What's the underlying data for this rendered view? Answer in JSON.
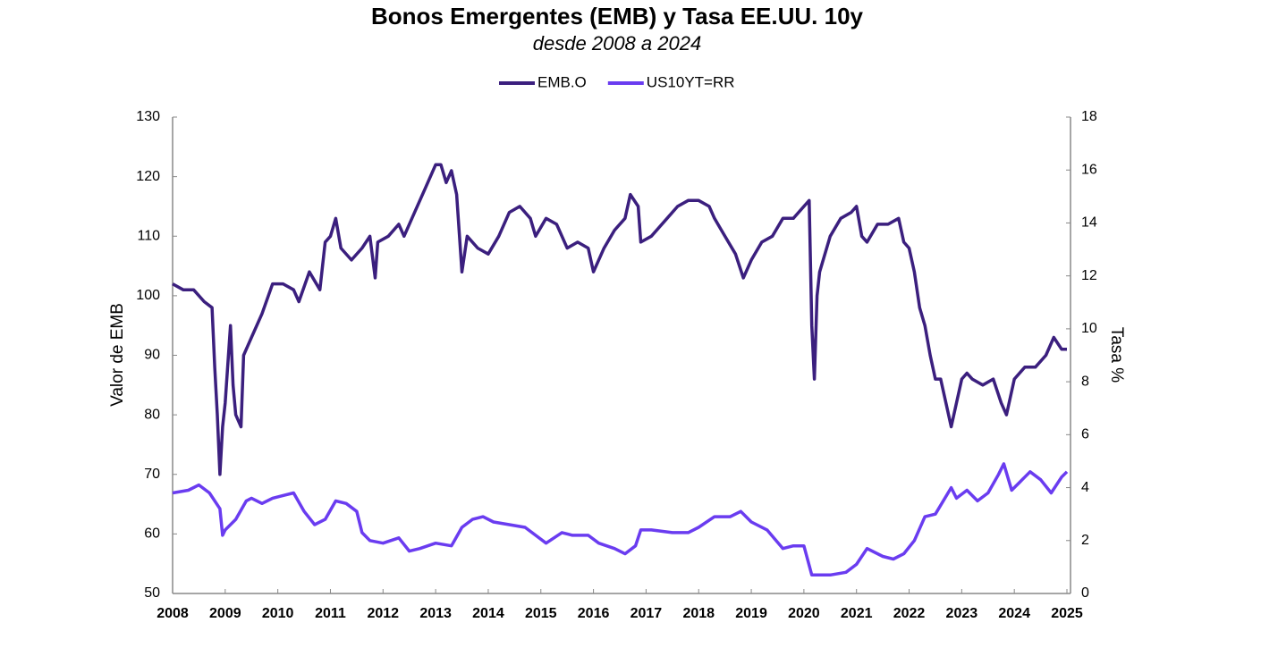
{
  "chart_data": {
    "type": "line",
    "title": "Bonos Emergentes (EMB) y Tasa EE.UU. 10y",
    "subtitle": "desde 2008 a 2024",
    "ylabel": "Valor de EMB",
    "y2label": "Tasa %",
    "legend": "top",
    "xlim": [
      2008,
      2025
    ],
    "xticks": [
      2008,
      2009,
      2010,
      2011,
      2012,
      2013,
      2014,
      2015,
      2016,
      2017,
      2018,
      2019,
      2020,
      2021,
      2022,
      2023,
      2024,
      2025
    ],
    "ylim": [
      50,
      130
    ],
    "yticks": [
      50,
      60,
      70,
      80,
      90,
      100,
      110,
      120,
      130
    ],
    "y2lim": [
      0,
      18
    ],
    "y2ticks": [
      0,
      2,
      4,
      6,
      8,
      10,
      12,
      14,
      16,
      18
    ],
    "series": [
      {
        "name": "EMB.O",
        "color": "#3b1f7e",
        "axis": "y",
        "x": [
          2008.0,
          2008.2,
          2008.4,
          2008.6,
          2008.75,
          2008.8,
          2008.85,
          2008.9,
          2008.95,
          2009.0,
          2009.1,
          2009.15,
          2009.2,
          2009.3,
          2009.35,
          2009.5,
          2009.7,
          2009.9,
          2010.1,
          2010.3,
          2010.4,
          2010.6,
          2010.8,
          2010.9,
          2011.0,
          2011.1,
          2011.2,
          2011.4,
          2011.6,
          2011.75,
          2011.85,
          2011.9,
          2012.1,
          2012.3,
          2012.4,
          2012.6,
          2012.8,
          2013.0,
          2013.1,
          2013.2,
          2013.3,
          2013.4,
          2013.5,
          2013.6,
          2013.8,
          2014.0,
          2014.2,
          2014.4,
          2014.6,
          2014.8,
          2014.9,
          2015.1,
          2015.3,
          2015.5,
          2015.7,
          2015.9,
          2016.0,
          2016.2,
          2016.4,
          2016.6,
          2016.7,
          2016.85,
          2016.9,
          2017.1,
          2017.4,
          2017.6,
          2017.8,
          2018.0,
          2018.2,
          2018.3,
          2018.5,
          2018.7,
          2018.85,
          2019.0,
          2019.2,
          2019.4,
          2019.6,
          2019.8,
          2020.0,
          2020.1,
          2020.15,
          2020.2,
          2020.25,
          2020.3,
          2020.5,
          2020.7,
          2020.9,
          2021.0,
          2021.1,
          2021.2,
          2021.4,
          2021.6,
          2021.8,
          2021.9,
          2022.0,
          2022.1,
          2022.2,
          2022.3,
          2022.4,
          2022.5,
          2022.6,
          2022.7,
          2022.8,
          2022.9,
          2023.0,
          2023.1,
          2023.2,
          2023.4,
          2023.6,
          2023.75,
          2023.85,
          2024.0,
          2024.2,
          2024.4,
          2024.6,
          2024.75,
          2024.9,
          2025.0
        ],
        "values": [
          102,
          101,
          101,
          99,
          98,
          88,
          80,
          70,
          78,
          82,
          95,
          85,
          80,
          78,
          90,
          93,
          97,
          102,
          102,
          101,
          99,
          104,
          101,
          109,
          110,
          113,
          108,
          106,
          108,
          110,
          103,
          109,
          110,
          112,
          110,
          114,
          118,
          122,
          122,
          119,
          121,
          117,
          104,
          110,
          108,
          107,
          110,
          114,
          115,
          113,
          110,
          113,
          112,
          108,
          109,
          108,
          104,
          108,
          111,
          113,
          117,
          115,
          109,
          110,
          113,
          115,
          116,
          116,
          115,
          113,
          110,
          107,
          103,
          106,
          109,
          110,
          113,
          113,
          115,
          116,
          95,
          86,
          100,
          104,
          110,
          113,
          114,
          115,
          110,
          109,
          112,
          112,
          113,
          109,
          108,
          104,
          98,
          95,
          90,
          86,
          86,
          82,
          78,
          82,
          86,
          87,
          86,
          85,
          86,
          82,
          80,
          86,
          88,
          88,
          90,
          93,
          91,
          91
        ]
      },
      {
        "name": "US10YT=RR",
        "color": "#6a3cf0",
        "axis": "y2",
        "x": [
          2008.0,
          2008.3,
          2008.5,
          2008.7,
          2008.9,
          2008.95,
          2009.0,
          2009.2,
          2009.4,
          2009.5,
          2009.7,
          2009.9,
          2010.1,
          2010.3,
          2010.5,
          2010.7,
          2010.9,
          2011.1,
          2011.3,
          2011.5,
          2011.6,
          2011.75,
          2012.0,
          2012.3,
          2012.5,
          2012.7,
          2013.0,
          2013.3,
          2013.5,
          2013.7,
          2013.9,
          2014.1,
          2014.4,
          2014.7,
          2014.9,
          2015.1,
          2015.4,
          2015.6,
          2015.9,
          2016.1,
          2016.4,
          2016.6,
          2016.8,
          2016.9,
          2017.1,
          2017.5,
          2017.8,
          2018.0,
          2018.3,
          2018.6,
          2018.8,
          2019.0,
          2019.3,
          2019.6,
          2019.8,
          2020.0,
          2020.15,
          2020.5,
          2020.8,
          2021.0,
          2021.2,
          2021.5,
          2021.7,
          2021.9,
          2022.1,
          2022.3,
          2022.5,
          2022.8,
          2022.9,
          2023.1,
          2023.3,
          2023.5,
          2023.7,
          2023.8,
          2023.95,
          2024.1,
          2024.3,
          2024.5,
          2024.7,
          2024.9,
          2025.0
        ],
        "values": [
          3.8,
          3.9,
          4.1,
          3.8,
          3.2,
          2.2,
          2.4,
          2.8,
          3.5,
          3.6,
          3.4,
          3.6,
          3.7,
          3.8,
          3.1,
          2.6,
          2.8,
          3.5,
          3.4,
          3.1,
          2.3,
          2.0,
          1.9,
          2.1,
          1.6,
          1.7,
          1.9,
          1.8,
          2.5,
          2.8,
          2.9,
          2.7,
          2.6,
          2.5,
          2.2,
          1.9,
          2.3,
          2.2,
          2.2,
          1.9,
          1.7,
          1.5,
          1.8,
          2.4,
          2.4,
          2.3,
          2.3,
          2.5,
          2.9,
          2.9,
          3.1,
          2.7,
          2.4,
          1.7,
          1.8,
          1.8,
          0.7,
          0.7,
          0.8,
          1.1,
          1.7,
          1.4,
          1.3,
          1.5,
          2.0,
          2.9,
          3.0,
          4.0,
          3.6,
          3.9,
          3.5,
          3.8,
          4.5,
          4.9,
          3.9,
          4.2,
          4.6,
          4.3,
          3.8,
          4.4,
          4.6
        ]
      }
    ]
  }
}
